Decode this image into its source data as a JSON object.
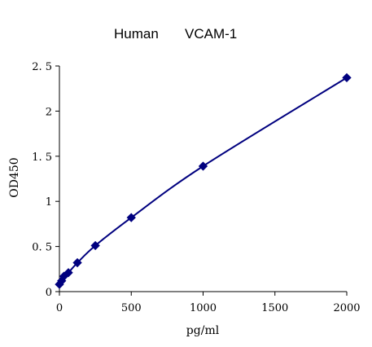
{
  "chart_data": {
    "type": "scatter",
    "title_left": "Human",
    "title_right": "VCAM-1",
    "xlabel": "pg/ml",
    "ylabel": "OD450",
    "xlim": [
      0,
      2000
    ],
    "ylim": [
      0,
      2.5
    ],
    "x_ticks": [
      0,
      500,
      1000,
      1500,
      2000
    ],
    "y_ticks": [
      0,
      0.5,
      1,
      1.5,
      2,
      2.5
    ],
    "x_tick_labels": [
      "0",
      "500",
      "1000",
      "1500",
      "2000"
    ],
    "y_tick_labels": [
      "0",
      "0. 5",
      "1",
      "1. 5",
      "2",
      "2. 5"
    ],
    "grid": false,
    "legend": "none",
    "line_color": "#00007f",
    "marker_color": "#00007f",
    "series": [
      {
        "x": [
          0,
          15.6,
          31.25,
          62.5,
          125,
          250,
          500,
          1000,
          2000
        ],
        "y": [
          0.08,
          0.12,
          0.17,
          0.21,
          0.32,
          0.51,
          0.82,
          1.39,
          2.37
        ]
      }
    ]
  }
}
